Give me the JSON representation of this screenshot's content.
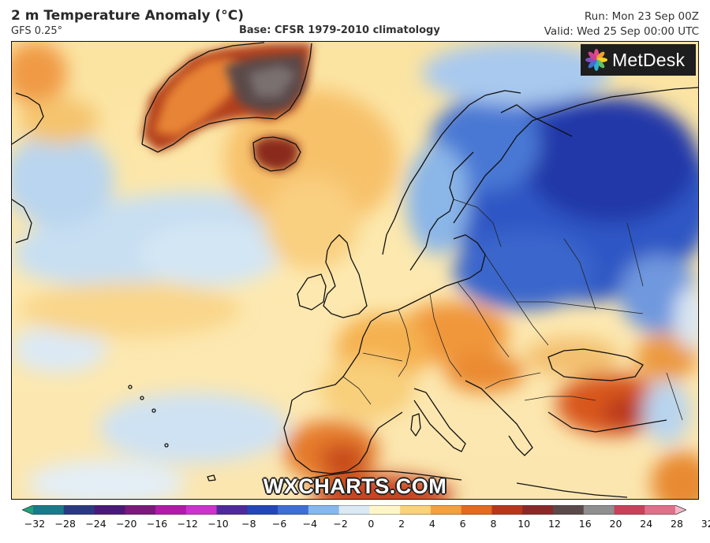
{
  "header": {
    "title": "2 m Temperature Anomaly (°C)",
    "model": "GFS 0.25°",
    "base": "Base: CFSR 1979-2010 climatology",
    "run": "Run: Mon 23 Sep 00Z",
    "valid": "Valid: Wed 25 Sep 00:00 UTC"
  },
  "logo": {
    "text": "MetDesk",
    "icon": "metdesk-flower-icon"
  },
  "watermark": "WXCHARTS.COM",
  "colorbar": {
    "ticks": [
      "−32",
      "−28",
      "−24",
      "−20",
      "−16",
      "−12",
      "−10",
      "−8",
      "−6",
      "−4",
      "−2",
      "0",
      "2",
      "4",
      "6",
      "8",
      "10",
      "12",
      "16",
      "20",
      "24",
      "28",
      "32"
    ],
    "colors": [
      "#1fa37d",
      "#1a7a8a",
      "#2b3a80",
      "#4a1a78",
      "#7a1a7a",
      "#b21aa8",
      "#cc33cc",
      "#4f2a9a",
      "#2346b8",
      "#3f6fd4",
      "#86b8ee",
      "#dbe9f5",
      "#fff6c8",
      "#fad27a",
      "#f3a03e",
      "#e46a1f",
      "#b8371c",
      "#8a2a28",
      "#5a4a4a",
      "#8f8f8f",
      "#c8425a",
      "#e0708a",
      "#f2b8c8"
    ]
  }
}
